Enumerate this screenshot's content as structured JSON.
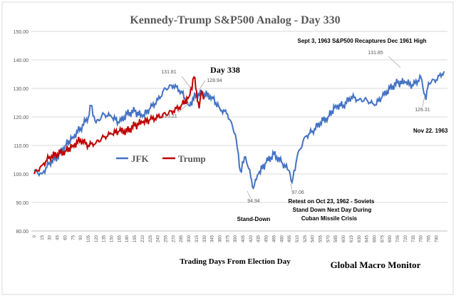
{
  "chart_data": {
    "type": "line",
    "title": "Kennedy-Trump  S&P500 Analog  - Day 330",
    "xlabel": "Trading  Days From  Election  Day",
    "ylabel": "",
    "ylim": [
      80,
      150
    ],
    "yticks": [
      "80.00",
      "90.00",
      "100.00",
      "110.00",
      "120.00",
      "130.00",
      "140.00",
      "150.00"
    ],
    "xticks_step": 15,
    "xlim": [
      0,
      795
    ],
    "grid": "horizontal",
    "legend": "center-left",
    "series": [
      {
        "name": "JFK",
        "color": "#4472C4",
        "x": [
          0,
          15,
          30,
          45,
          60,
          75,
          90,
          105,
          110,
          120,
          135,
          150,
          165,
          180,
          195,
          210,
          225,
          240,
          255,
          270,
          285,
          300,
          315,
          330,
          345,
          360,
          375,
          390,
          400,
          410,
          420,
          425,
          435,
          450,
          465,
          480,
          495,
          500,
          510,
          525,
          540,
          555,
          570,
          585,
          600,
          615,
          630,
          645,
          660,
          675,
          690,
          705,
          720,
          735,
          750,
          760,
          765,
          780,
          795
        ],
        "values": [
          101,
          100,
          104,
          106,
          110,
          113,
          116,
          120,
          124,
          118,
          121,
          120,
          118,
          121,
          122,
          120,
          123,
          126,
          130,
          131,
          129,
          124,
          128,
          128,
          127,
          123,
          121,
          114,
          101,
          106,
          99,
          95,
          100,
          104,
          107,
          104,
          101,
          97,
          106,
          113,
          115,
          118,
          120,
          124,
          124,
          127,
          126,
          126,
          124,
          127,
          130,
          132,
          132,
          131,
          134,
          126,
          132,
          133,
          136
        ]
      },
      {
        "name": "Trump",
        "color": "#C00000",
        "x": [
          0,
          15,
          30,
          45,
          60,
          75,
          90,
          105,
          120,
          135,
          150,
          165,
          180,
          195,
          210,
          225,
          240,
          255,
          270,
          285,
          300,
          310,
          315,
          320,
          325,
          330
        ],
        "values": [
          100,
          103,
          106,
          107,
          108,
          110,
          112,
          110,
          111,
          113,
          114,
          115,
          115,
          117,
          118,
          119,
          120,
          121,
          122,
          124,
          127,
          134,
          129,
          123,
          129,
          127
        ]
      }
    ],
    "annotations": [
      {
        "text": "131.81",
        "x": 270,
        "y": 131.81
      },
      {
        "text": "123.21",
        "x": 300,
        "y": 123.21
      },
      {
        "text": "128.94",
        "x": 330,
        "y": 128.94
      },
      {
        "text": "Day 338",
        "x": 338,
        "y": 134
      },
      {
        "text": "94.94",
        "x": 425,
        "y": 94.94
      },
      {
        "text": "Stand-Down",
        "x": 425,
        "y": 94.94
      },
      {
        "text": "97.06",
        "x": 500,
        "y": 97.06
      },
      {
        "text": "Retest on Oct 23, 1962 - Soviets",
        "x": 500,
        "y": 97.06
      },
      {
        "text": "Stand Down Next Day During",
        "x": 500,
        "y": 97.06
      },
      {
        "text": "Cuban Missile Crisis",
        "x": 500,
        "y": 97.06
      },
      {
        "text": "Sept 3, 1963  S&P500 Recaptures Dec 1961 High",
        "x": 700,
        "y": 142
      },
      {
        "text": "131.85",
        "x": 705,
        "y": 131.85
      },
      {
        "text": "126.31",
        "x": 760,
        "y": 126.31
      },
      {
        "text": "Nov 22. 1963",
        "x": 760,
        "y": 126.31
      }
    ],
    "source": "Global Macro Monitor"
  }
}
